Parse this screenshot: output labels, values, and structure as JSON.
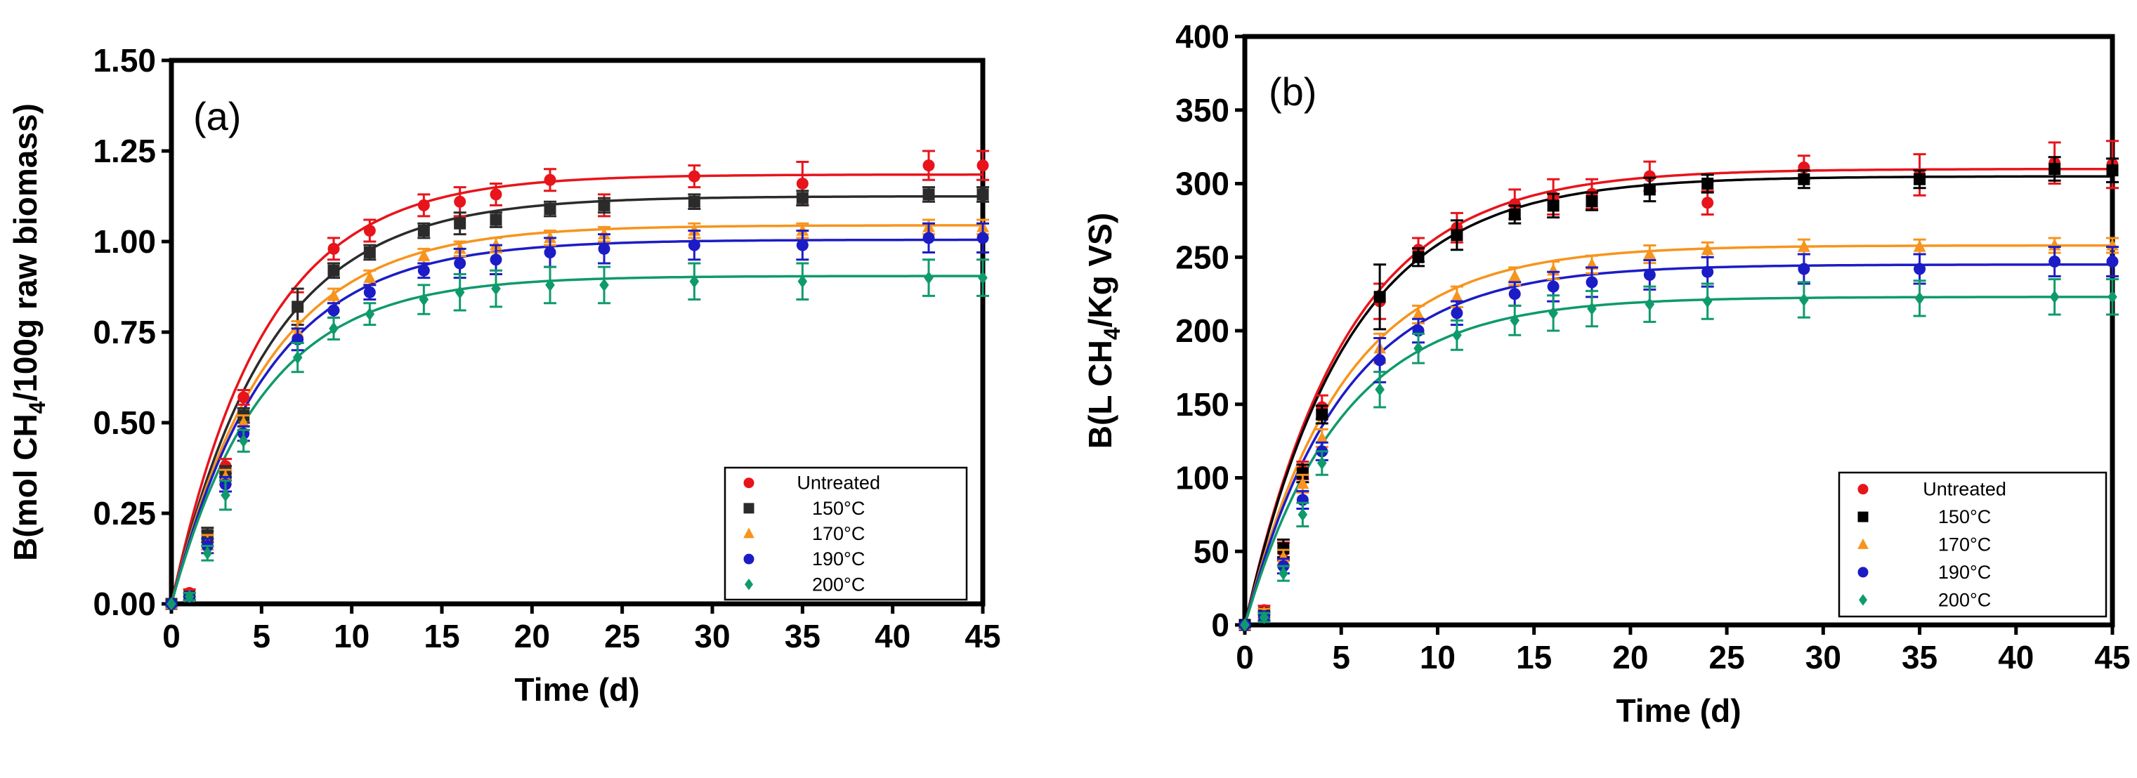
{
  "chart_data": [
    {
      "type": "scatter",
      "panel_label": "(a)",
      "xlabel": "Time (d)",
      "ylabel_parts": [
        "B(mol CH",
        "4",
        "/100g raw biomass)"
      ],
      "xlim": [
        0,
        45
      ],
      "ylim": [
        0,
        1.5
      ],
      "xticks": [
        "0",
        "5",
        "10",
        "15",
        "20",
        "25",
        "30",
        "35",
        "40",
        "45"
      ],
      "yticks": [
        "0.00",
        "0.25",
        "0.50",
        "0.75",
        "1.00",
        "1.25",
        "1.50"
      ],
      "legend_position": "bottom-right",
      "x": [
        0,
        1,
        2,
        3,
        4,
        7,
        9,
        11,
        14,
        16,
        18,
        21,
        24,
        29,
        35,
        42,
        45
      ],
      "series": [
        {
          "name": "Untreated",
          "color": "#e8141b",
          "marker": "circle",
          "fit_Bmax": 1.185,
          "fit_k": 0.195,
          "values": [
            0,
            0.03,
            0.18,
            0.38,
            0.57,
            0.82,
            0.98,
            1.03,
            1.1,
            1.11,
            1.13,
            1.17,
            1.1,
            1.18,
            1.16,
            1.21,
            1.21
          ],
          "errors": [
            0,
            0.01,
            0.02,
            0.02,
            0.02,
            0.04,
            0.03,
            0.03,
            0.03,
            0.04,
            0.03,
            0.03,
            0.03,
            0.03,
            0.06,
            0.04,
            0.04
          ]
        },
        {
          "name": "150°C",
          "color": "#2b2b2b",
          "marker": "square",
          "fit_Bmax": 1.125,
          "fit_k": 0.185,
          "values": [
            0,
            0.02,
            0.19,
            0.36,
            0.52,
            0.82,
            0.92,
            0.97,
            1.03,
            1.05,
            1.06,
            1.09,
            1.1,
            1.11,
            1.12,
            1.13,
            1.13
          ],
          "errors": [
            0,
            0.01,
            0.02,
            0.02,
            0.02,
            0.05,
            0.02,
            0.02,
            0.02,
            0.03,
            0.02,
            0.02,
            0.02,
            0.02,
            0.02,
            0.02,
            0.02
          ]
        },
        {
          "name": "170°C",
          "color": "#f7941d",
          "marker": "triangle",
          "fit_Bmax": 1.045,
          "fit_k": 0.19,
          "values": [
            0,
            0.02,
            0.17,
            0.35,
            0.5,
            0.75,
            0.85,
            0.9,
            0.96,
            0.98,
            0.99,
            1.01,
            1.02,
            1.03,
            1.03,
            1.04,
            1.04
          ],
          "errors": [
            0,
            0.01,
            0.02,
            0.02,
            0.02,
            0.03,
            0.02,
            0.02,
            0.02,
            0.02,
            0.02,
            0.02,
            0.02,
            0.02,
            0.02,
            0.02,
            0.02
          ]
        },
        {
          "name": "190°C",
          "color": "#1c1cc6",
          "marker": "circle",
          "fit_Bmax": 1.005,
          "fit_k": 0.19,
          "values": [
            0,
            0.02,
            0.16,
            0.33,
            0.47,
            0.73,
            0.81,
            0.86,
            0.92,
            0.94,
            0.95,
            0.97,
            0.98,
            0.99,
            0.99,
            1.01,
            1.01
          ],
          "errors": [
            0,
            0.01,
            0.02,
            0.02,
            0.02,
            0.03,
            0.02,
            0.02,
            0.02,
            0.04,
            0.04,
            0.04,
            0.04,
            0.04,
            0.04,
            0.04,
            0.04
          ]
        },
        {
          "name": "200°C",
          "color": "#0f9a6b",
          "marker": "diamond",
          "fit_Bmax": 0.905,
          "fit_k": 0.2,
          "values": [
            0,
            0.02,
            0.14,
            0.3,
            0.45,
            0.68,
            0.76,
            0.8,
            0.84,
            0.86,
            0.87,
            0.88,
            0.88,
            0.89,
            0.89,
            0.9,
            0.9
          ],
          "errors": [
            0,
            0.01,
            0.02,
            0.04,
            0.03,
            0.04,
            0.03,
            0.03,
            0.04,
            0.05,
            0.05,
            0.05,
            0.05,
            0.05,
            0.05,
            0.05,
            0.05
          ]
        }
      ]
    },
    {
      "type": "scatter",
      "panel_label": "(b)",
      "xlabel": "Time (d)",
      "ylabel_parts": [
        "B(L CH",
        "4",
        "/Kg VS)"
      ],
      "xlim": [
        0,
        45
      ],
      "ylim": [
        0,
        400
      ],
      "xticks": [
        "0",
        "5",
        "10",
        "15",
        "20",
        "25",
        "30",
        "35",
        "40",
        "45"
      ],
      "yticks": [
        "0",
        "50",
        "100",
        "150",
        "200",
        "250",
        "300",
        "350",
        "400"
      ],
      "legend_position": "bottom-right",
      "x": [
        0,
        1,
        2,
        3,
        4,
        7,
        9,
        11,
        14,
        16,
        18,
        21,
        24,
        29,
        35,
        42,
        45
      ],
      "series": [
        {
          "name": "Untreated",
          "color": "#e8141b",
          "marker": "circle",
          "fit_Bmax": 310,
          "fit_k": 0.19,
          "values": [
            0,
            10,
            50,
            105,
            148,
            220,
            255,
            270,
            286,
            291,
            293,
            305,
            287,
            311,
            306,
            314,
            313
          ],
          "errors": [
            0,
            3,
            6,
            6,
            8,
            12,
            8,
            10,
            10,
            12,
            10,
            10,
            8,
            8,
            14,
            14,
            16
          ]
        },
        {
          "name": "150°C",
          "color": "#000000",
          "marker": "square",
          "fit_Bmax": 305,
          "fit_k": 0.188,
          "values": [
            0,
            8,
            52,
            103,
            143,
            223,
            250,
            265,
            279,
            285,
            288,
            296,
            300,
            303,
            303,
            310,
            309
          ],
          "errors": [
            0,
            3,
            6,
            6,
            6,
            22,
            6,
            10,
            6,
            8,
            6,
            8,
            6,
            6,
            6,
            8,
            8
          ]
        },
        {
          "name": "170°C",
          "color": "#f7941d",
          "marker": "triangle",
          "fit_Bmax": 258,
          "fit_k": 0.2,
          "values": [
            0,
            8,
            46,
            96,
            127,
            188,
            211,
            223,
            237,
            241,
            245,
            252,
            255,
            257,
            257,
            258,
            258
          ],
          "errors": [
            0,
            3,
            5,
            6,
            6,
            10,
            6,
            7,
            6,
            6,
            6,
            6,
            5,
            5,
            5,
            5,
            5
          ]
        },
        {
          "name": "190°C",
          "color": "#1c1cc6",
          "marker": "circle",
          "fit_Bmax": 245,
          "fit_k": 0.2,
          "values": [
            0,
            6,
            40,
            85,
            118,
            180,
            200,
            212,
            225,
            230,
            233,
            238,
            240,
            242,
            242,
            247,
            247
          ],
          "errors": [
            0,
            3,
            5,
            6,
            6,
            15,
            8,
            8,
            8,
            10,
            10,
            10,
            10,
            10,
            10,
            10,
            10
          ]
        },
        {
          "name": "200°C",
          "color": "#0f9a6b",
          "marker": "diamond",
          "fit_Bmax": 223,
          "fit_k": 0.2,
          "values": [
            0,
            5,
            35,
            75,
            110,
            160,
            188,
            197,
            207,
            212,
            215,
            218,
            220,
            221,
            222,
            223,
            223
          ],
          "errors": [
            0,
            3,
            5,
            8,
            8,
            12,
            10,
            10,
            10,
            12,
            12,
            12,
            12,
            12,
            12,
            12,
            12
          ]
        }
      ]
    }
  ]
}
